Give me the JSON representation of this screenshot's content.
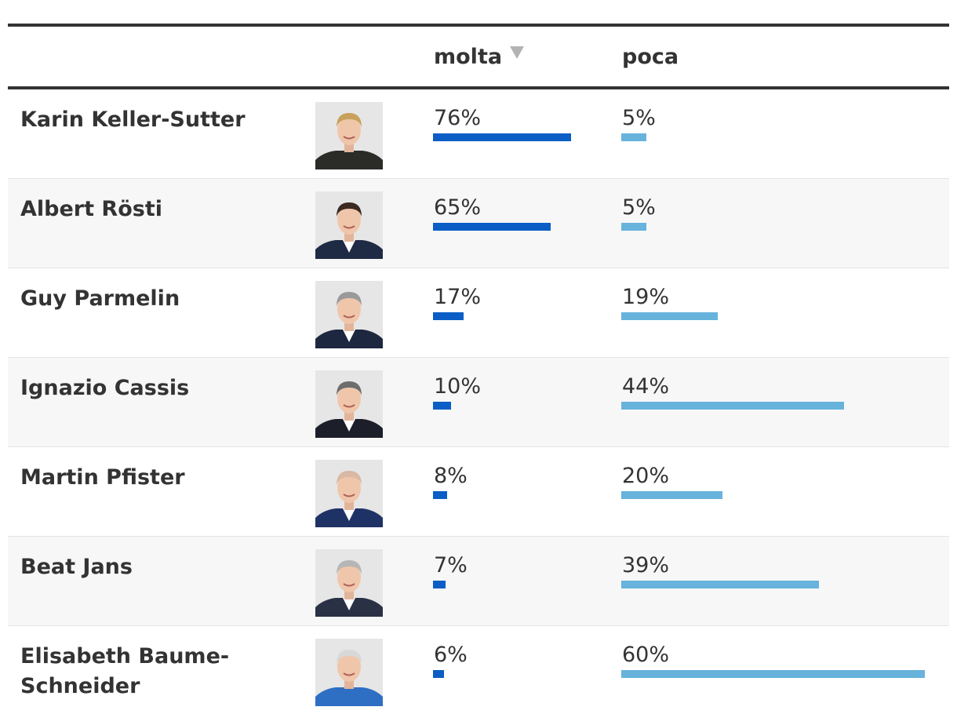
{
  "columns": {
    "molta_label": "molta",
    "poca_label": "poca",
    "sort_icon": "sort-descending-triangle-icon"
  },
  "colors": {
    "molta_bar": "#0a5ec5",
    "poca_bar": "#67b3dc",
    "text": "#333333",
    "stripe": "#f7f7f7"
  },
  "rows": [
    {
      "name": "Karin Keller-Sutter",
      "molta": 76,
      "molta_label": "76%",
      "poca": 5,
      "poca_label": "5%",
      "hair": "#c8a15a",
      "suit": "#2b2b28",
      "shirt": "#2b2b28"
    },
    {
      "name": "Albert Rösti",
      "molta": 65,
      "molta_label": "65%",
      "poca": 5,
      "poca_label": "5%",
      "hair": "#3b2a20",
      "suit": "#1f2a44",
      "shirt": "#ffffff"
    },
    {
      "name": "Guy Parmelin",
      "molta": 17,
      "molta_label": "17%",
      "poca": 19,
      "poca_label": "19%",
      "hair": "#9a9a9a",
      "suit": "#1d2740",
      "shirt": "#ffffff"
    },
    {
      "name": "Ignazio Cassis",
      "molta": 10,
      "molta_label": "10%",
      "poca": 44,
      "poca_label": "44%",
      "hair": "#6d6d6d",
      "suit": "#1c1f2a",
      "shirt": "#ffffff"
    },
    {
      "name": "Martin Pfister",
      "molta": 8,
      "molta_label": "8%",
      "poca": 20,
      "poca_label": "20%",
      "hair": "#d9b9a3",
      "suit": "#1f3266",
      "shirt": "#ffffff"
    },
    {
      "name": "Beat Jans",
      "molta": 7,
      "molta_label": "7%",
      "poca": 39,
      "poca_label": "39%",
      "hair": "#b6b6b6",
      "suit": "#2a3145",
      "shirt": "#ffffff"
    },
    {
      "name": "Elisabeth Baume-Schneider",
      "molta": 6,
      "molta_label": "6%",
      "poca": 60,
      "poca_label": "60%",
      "hair": "#d8d8d8",
      "suit": "#2e6fc3",
      "shirt": "#2e6fc3"
    }
  ]
}
